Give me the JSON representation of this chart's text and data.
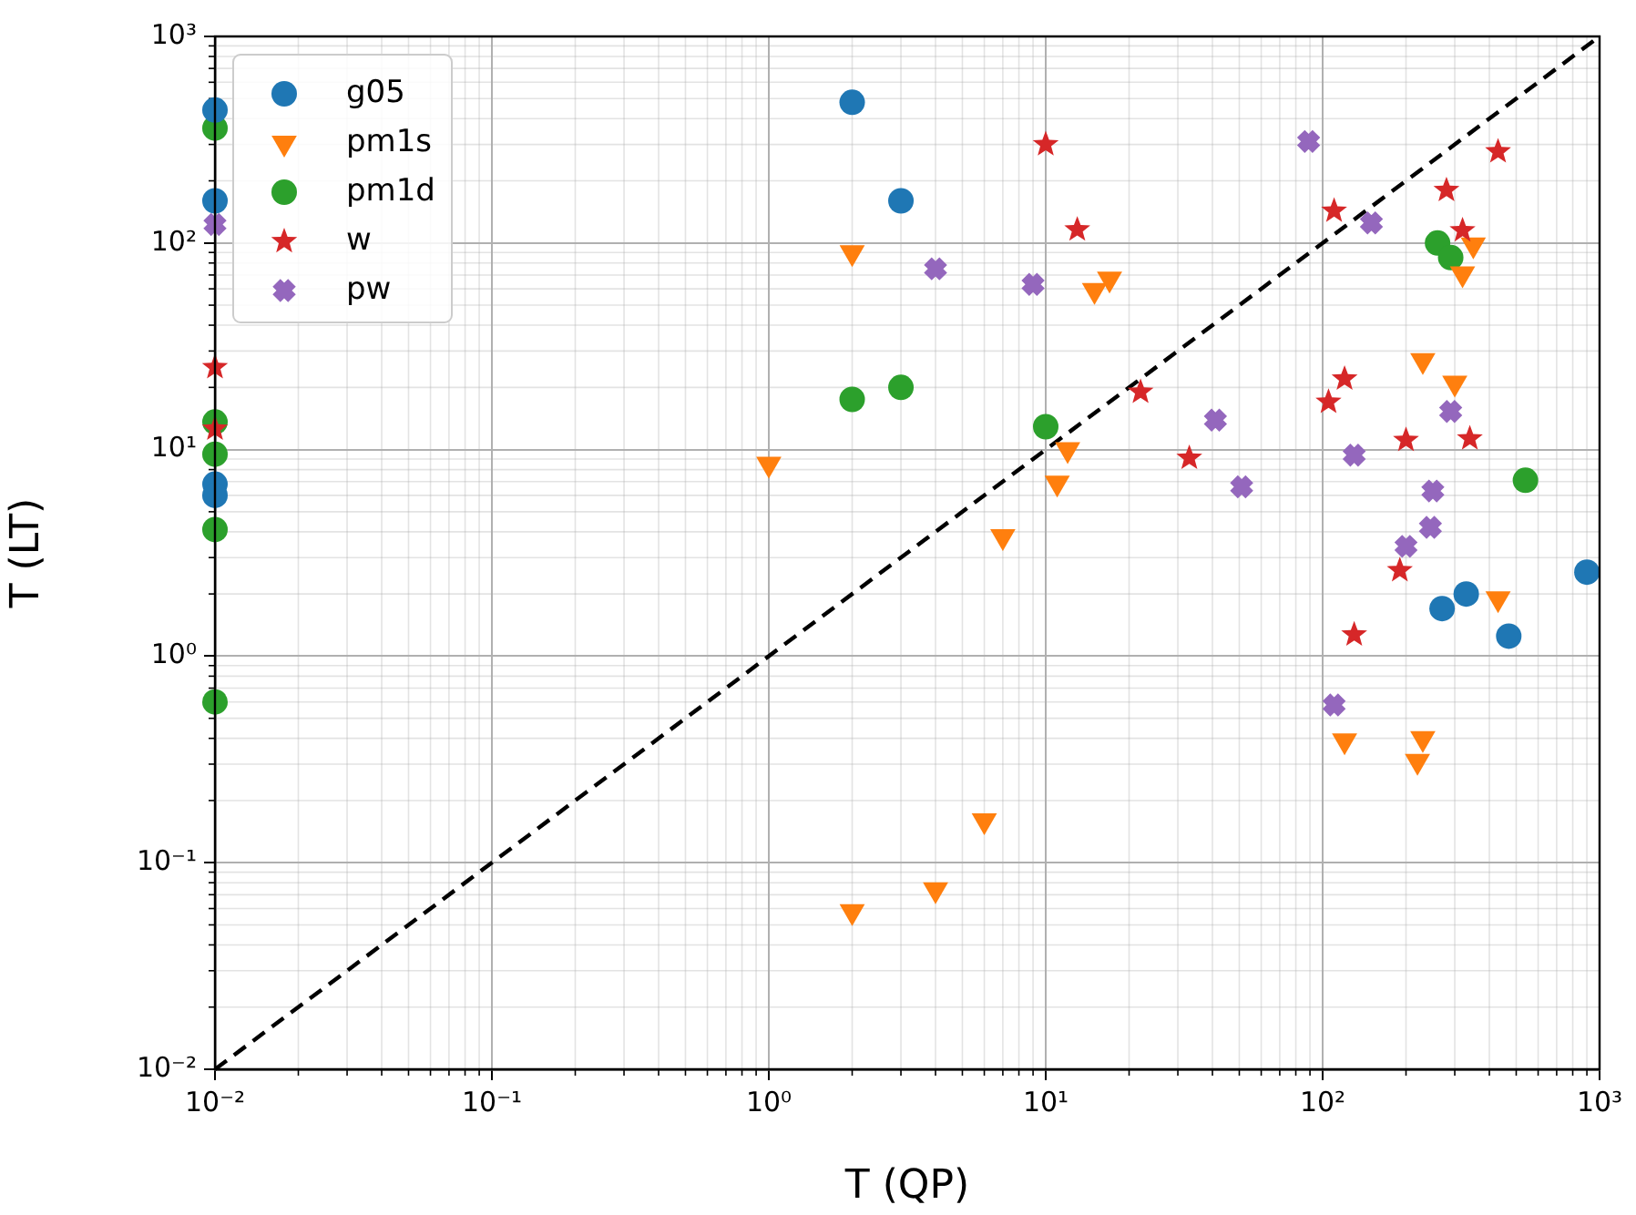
{
  "chart_data": {
    "type": "scatter",
    "xlabel": "T (QP)",
    "ylabel": "T (LT)",
    "log": "xy",
    "grid": true,
    "legend": "top left",
    "xlim": [
      0.01,
      1000
    ],
    "ylim": [
      0.01,
      1000
    ],
    "xticks": [
      {
        "value": 0.01,
        "label": "10⁻²"
      },
      {
        "value": 0.1,
        "label": "10⁻¹"
      },
      {
        "value": 1,
        "label": "10⁰"
      },
      {
        "value": 10,
        "label": "10¹"
      },
      {
        "value": 100,
        "label": "10²"
      },
      {
        "value": 1000,
        "label": "10³"
      }
    ],
    "yticks": [
      {
        "value": 0.01,
        "label": "10⁻²"
      },
      {
        "value": 0.1,
        "label": "10⁻¹"
      },
      {
        "value": 1,
        "label": "10⁰"
      },
      {
        "value": 10,
        "label": "10¹"
      },
      {
        "value": 100,
        "label": "10²"
      },
      {
        "value": 1000,
        "label": "10³"
      }
    ],
    "series": [
      {
        "name": "g05",
        "color": "#1f77b4",
        "marker": "circle",
        "x": [
          0.01,
          0.01,
          0.01,
          0.01,
          2,
          3,
          270,
          330,
          470,
          900
        ],
        "values": [
          440,
          160,
          6.8,
          6.0,
          480,
          160,
          1.7,
          2.0,
          1.25,
          2.55
        ]
      },
      {
        "name": "pm1s",
        "color": "#ff7f0e",
        "marker": "triangle",
        "x": [
          2,
          1,
          15,
          17,
          350,
          320,
          230,
          300,
          12,
          11,
          7,
          430,
          120,
          230,
          220,
          6,
          4,
          2
        ],
        "values": [
          90,
          8.5,
          59,
          67,
          98,
          71,
          27,
          21,
          10,
          6.9,
          3.8,
          1.9,
          0.39,
          0.4,
          0.31,
          0.16,
          0.074,
          0.058
        ]
      },
      {
        "name": "pm1d",
        "color": "#2ca02c",
        "marker": "circle",
        "x": [
          0.01,
          0.01,
          0.01,
          0.01,
          0.01,
          2,
          3,
          10,
          260,
          290,
          540
        ],
        "values": [
          360,
          13.6,
          9.5,
          4.1,
          0.6,
          17.5,
          20,
          12.9,
          100,
          85,
          7.1
        ]
      },
      {
        "name": "w",
        "color": "#d62728",
        "marker": "star",
        "x": [
          0.01,
          0.01,
          10,
          13,
          110,
          430,
          280,
          320,
          120,
          105,
          200,
          340,
          22,
          33,
          190,
          130
        ],
        "values": [
          25,
          12.6,
          300,
          116,
          143,
          277,
          180,
          115,
          22,
          17,
          11.1,
          11.3,
          19,
          9.1,
          2.6,
          1.27
        ]
      },
      {
        "name": "pw",
        "color": "#9467bd",
        "marker": "cross",
        "x": [
          0.01,
          4,
          9,
          89,
          150,
          290,
          41,
          51,
          130,
          250,
          245,
          200,
          110
        ],
        "values": [
          123,
          75,
          63,
          310,
          125,
          15.3,
          13.9,
          6.6,
          9.4,
          6.3,
          4.2,
          3.4,
          0.58
        ]
      },
      {
        "type": "line",
        "color": "#000000",
        "line_style": "dashed",
        "marker": "none",
        "x": [
          0.01,
          1000
        ],
        "values": [
          0.01,
          1000
        ]
      }
    ]
  }
}
